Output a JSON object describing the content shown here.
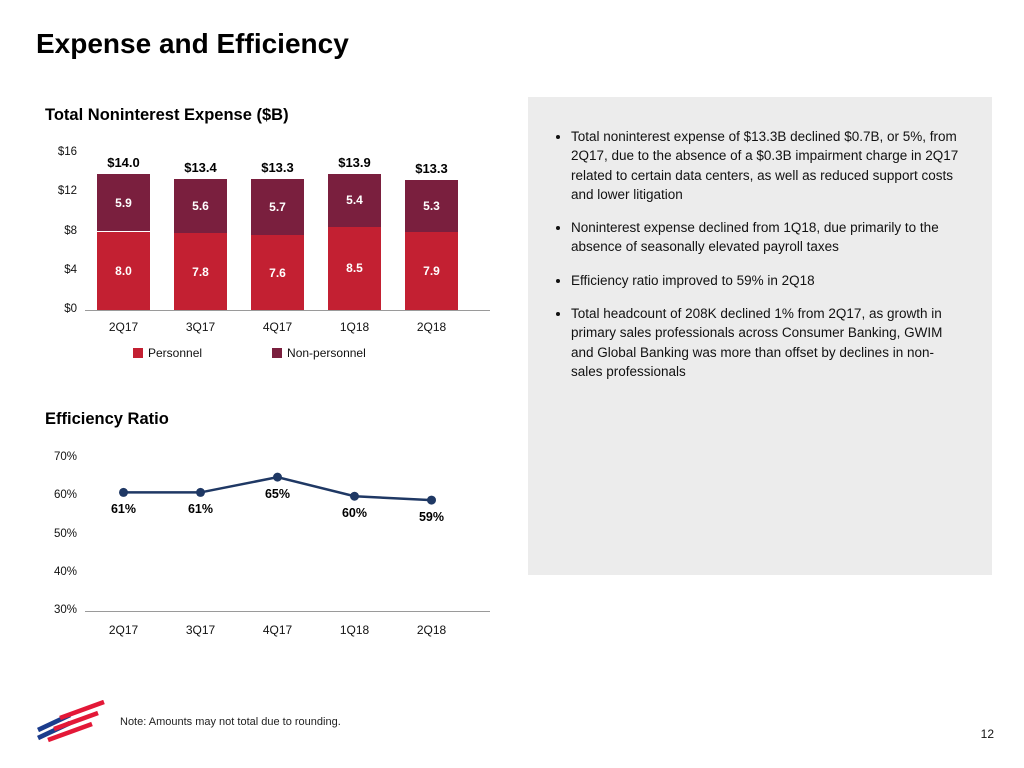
{
  "slide": {
    "title": "Expense and Efficiency",
    "page_number": "12",
    "footnote": "Note: Amounts may not total due to rounding."
  },
  "colors": {
    "personnel": "#c32032",
    "non_personnel": "#7a1f3e",
    "line": "#1f3864",
    "panel_bg": "#ececec",
    "logo_red": "#e31837",
    "logo_blue": "#1b3c8c"
  },
  "chart_data": [
    {
      "type": "bar",
      "stacked": true,
      "title": "Total Noninterest Expense ($B)",
      "categories": [
        "2Q17",
        "3Q17",
        "4Q17",
        "1Q18",
        "2Q18"
      ],
      "series": [
        {
          "name": "Personnel",
          "color": "#c32032",
          "values": [
            8.0,
            7.8,
            7.6,
            8.5,
            7.9
          ]
        },
        {
          "name": "Non-personnel",
          "color": "#7a1f3e",
          "values": [
            5.9,
            5.6,
            5.7,
            5.4,
            5.3
          ]
        }
      ],
      "totals": [
        "$14.0",
        "$13.4",
        "$13.3",
        "$13.9",
        "$13.3"
      ],
      "ylim": [
        0,
        16
      ],
      "yticks": [
        "$16",
        "$12",
        "$8",
        "$4",
        "$0"
      ],
      "grid": false,
      "legend_position": "bottom"
    },
    {
      "type": "line",
      "title": "Efficiency Ratio",
      "categories": [
        "2Q17",
        "3Q17",
        "4Q17",
        "1Q18",
        "2Q18"
      ],
      "values": [
        61,
        61,
        65,
        60,
        59
      ],
      "point_labels": [
        "61%",
        "61%",
        "65%",
        "60%",
        "59%"
      ],
      "ylim": [
        30,
        70
      ],
      "yticks": [
        "70%",
        "60%",
        "50%",
        "40%",
        "30%"
      ],
      "grid": false,
      "legend_position": "none"
    }
  ],
  "commentary": {
    "bullets": [
      "Total noninterest expense of $13.3B declined $0.7B, or 5%, from 2Q17, due to the absence of a $0.3B impairment charge in 2Q17 related to certain data centers, as well as reduced support costs and lower litigation",
      "Noninterest expense declined from 1Q18, due primarily to the absence of seasonally elevated payroll taxes",
      "Efficiency ratio improved to 59% in 2Q18",
      "Total headcount of 208K declined 1% from 2Q17, as growth in primary sales professionals across Consumer Banking, GWIM and Global Banking was more than offset by declines in non-sales professionals"
    ]
  }
}
